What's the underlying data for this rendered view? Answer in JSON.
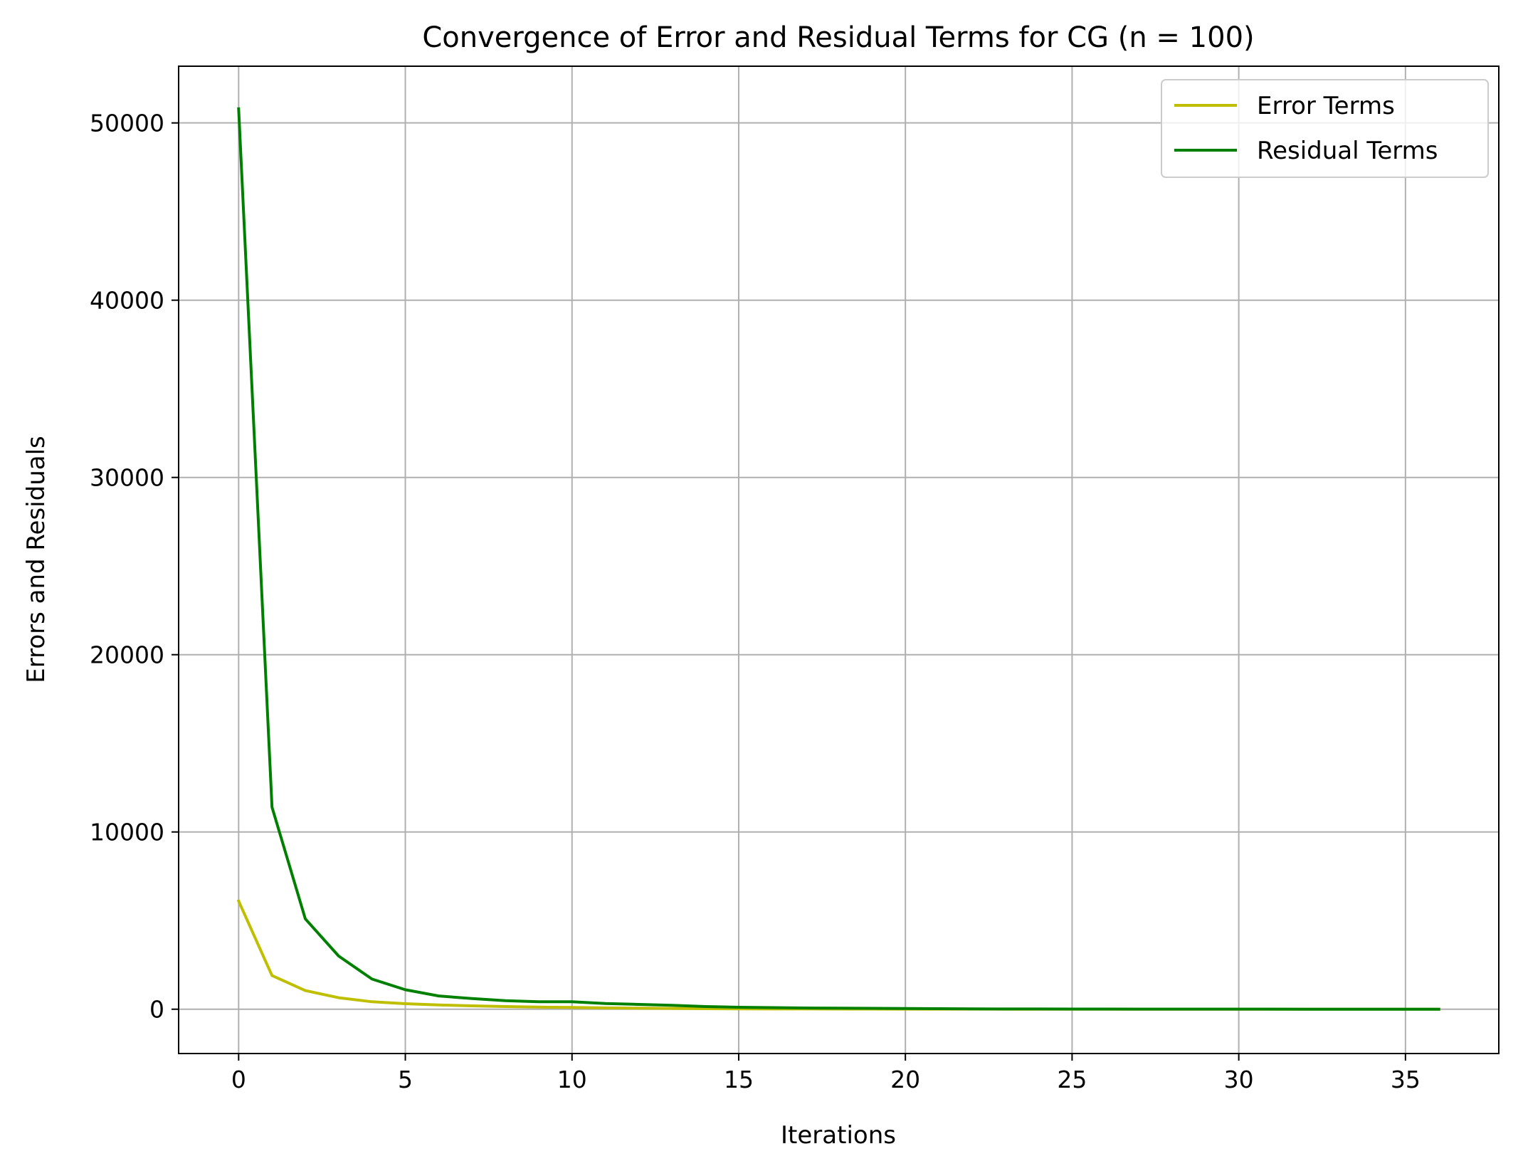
{
  "chart_data": {
    "type": "line",
    "title": "Convergence of Error and Residual Terms for CG (n = 100)",
    "xlabel": "Iterations",
    "ylabel": "Errors and Residuals",
    "xlim": [
      -1.8,
      37.8
    ],
    "ylim": [
      -2500,
      53200
    ],
    "xticks": [
      0,
      5,
      10,
      15,
      20,
      25,
      30,
      35
    ],
    "yticks": [
      0,
      10000,
      20000,
      30000,
      40000,
      50000
    ],
    "grid": true,
    "legend_position": "upper-right",
    "series": [
      {
        "name": "Error Terms",
        "color": "#bfbf00",
        "x": [
          0,
          1,
          2,
          3,
          4,
          5,
          6,
          7,
          8,
          9,
          10,
          11,
          12,
          13,
          14,
          15,
          16,
          17,
          18,
          19,
          20,
          21,
          22,
          23,
          24,
          25,
          26,
          27,
          28,
          29,
          30,
          31,
          32,
          33,
          34,
          35,
          36
        ],
        "values": [
          6100,
          1900,
          1050,
          650,
          420,
          310,
          240,
          190,
          150,
          120,
          100,
          75,
          60,
          45,
          30,
          20,
          15,
          12,
          10,
          8,
          6,
          5,
          4,
          3,
          2,
          2,
          1,
          1,
          1,
          1,
          1,
          1,
          0,
          0,
          0,
          0,
          0
        ]
      },
      {
        "name": "Residual Terms",
        "color": "#008000",
        "x": [
          0,
          1,
          2,
          3,
          4,
          5,
          6,
          7,
          8,
          9,
          10,
          11,
          12,
          13,
          14,
          15,
          16,
          17,
          18,
          19,
          20,
          21,
          22,
          23,
          24,
          25,
          26,
          27,
          28,
          29,
          30,
          31,
          32,
          33,
          34,
          35,
          36
        ],
        "values": [
          50800,
          11400,
          5100,
          3000,
          1700,
          1100,
          750,
          600,
          480,
          420,
          420,
          320,
          270,
          220,
          150,
          110,
          90,
          70,
          60,
          50,
          40,
          30,
          20,
          15,
          12,
          10,
          8,
          7,
          6,
          5,
          5,
          4,
          3,
          3,
          2,
          2,
          1
        ]
      }
    ]
  }
}
